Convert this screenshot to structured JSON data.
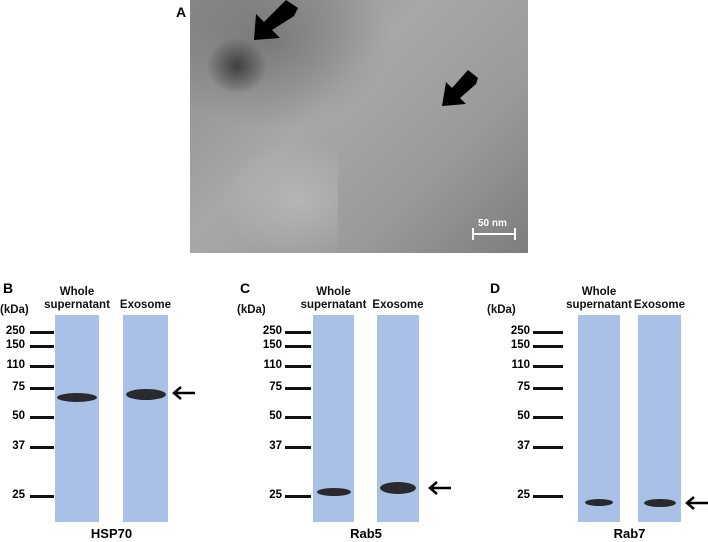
{
  "panel_a": {
    "label": "A",
    "scale_bar": "50 nm",
    "annotation_icon": "black-arrow-icon"
  },
  "blots": [
    {
      "label": "B",
      "unit": "(kDa)",
      "lane_labels": [
        "Whole\nsupernatant",
        "Exosome"
      ],
      "markers": [
        "250",
        "150",
        "110",
        "75",
        "50",
        "37",
        "25"
      ],
      "protein": "HSP70"
    },
    {
      "label": "C",
      "unit": "(kDa)",
      "lane_labels": [
        "Whole\nsupernatant",
        "Exosome"
      ],
      "markers": [
        "250",
        "150",
        "110",
        "75",
        "50",
        "37",
        "25"
      ],
      "protein": "Rab5"
    },
    {
      "label": "D",
      "unit": "(kDa)",
      "lane_labels": [
        "Whole\nsupernatant",
        "Exosome"
      ],
      "markers": [
        "250",
        "150",
        "110",
        "75",
        "50",
        "37",
        "25"
      ],
      "protein": "Rab7"
    }
  ],
  "colors": {
    "membrane": "#a9c1e6",
    "band": "#2a2a2e"
  }
}
